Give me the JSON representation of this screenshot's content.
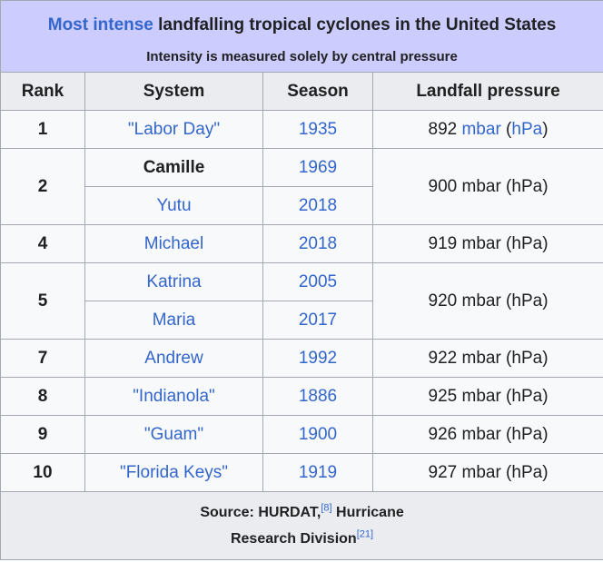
{
  "table": {
    "title_link": "Most intense",
    "title_rest": " landfalling tropical cyclones in the United States",
    "subtitle": "Intensity is measured solely by central pressure",
    "headers": [
      "Rank",
      "System",
      "Season",
      "Landfall pressure"
    ],
    "rows": [
      {
        "rank": "1",
        "system": "\"Labor Day\"",
        "season": "1935",
        "pressure_value": "892",
        "unit1": "mbar",
        "unit2": "hPa"
      },
      {
        "rank": "2",
        "system": "Camille",
        "season": "1969",
        "pressure_text": "900 mbar (hPa)"
      },
      {
        "system": "Yutu",
        "season": "2018"
      },
      {
        "rank": "4",
        "system": "Michael",
        "season": "2018",
        "pressure_text": "919 mbar (hPa)"
      },
      {
        "rank": "5",
        "system": "Katrina",
        "season": "2005",
        "pressure_text": "920 mbar (hPa)"
      },
      {
        "system": "Maria",
        "season": "2017"
      },
      {
        "rank": "7",
        "system": "Andrew",
        "season": "1992",
        "pressure_text": "922 mbar (hPa)"
      },
      {
        "rank": "8",
        "system": "\"Indianola\"",
        "season": "1886",
        "pressure_text": "925 mbar (hPa)"
      },
      {
        "rank": "9",
        "system": "\"Guam\"",
        "season": "1900",
        "pressure_text": "926 mbar (hPa)"
      },
      {
        "rank": "10",
        "system": "\"Florida Keys\"",
        "season": "1919",
        "pressure_text": "927 mbar (hPa)"
      }
    ],
    "source_line1": "Source: HURDAT,",
    "source_ref1": "[8]",
    "source_line1_end": " Hurricane",
    "source_line2": "Research Division",
    "source_ref2": "[21]"
  },
  "colors": {
    "link": "#3366cc",
    "visited_link": "#795cb2",
    "title_bg": "#ccccff",
    "header_bg": "#eaecf0",
    "cell_bg": "#f8f9fa",
    "border": "#a2a9b1"
  }
}
